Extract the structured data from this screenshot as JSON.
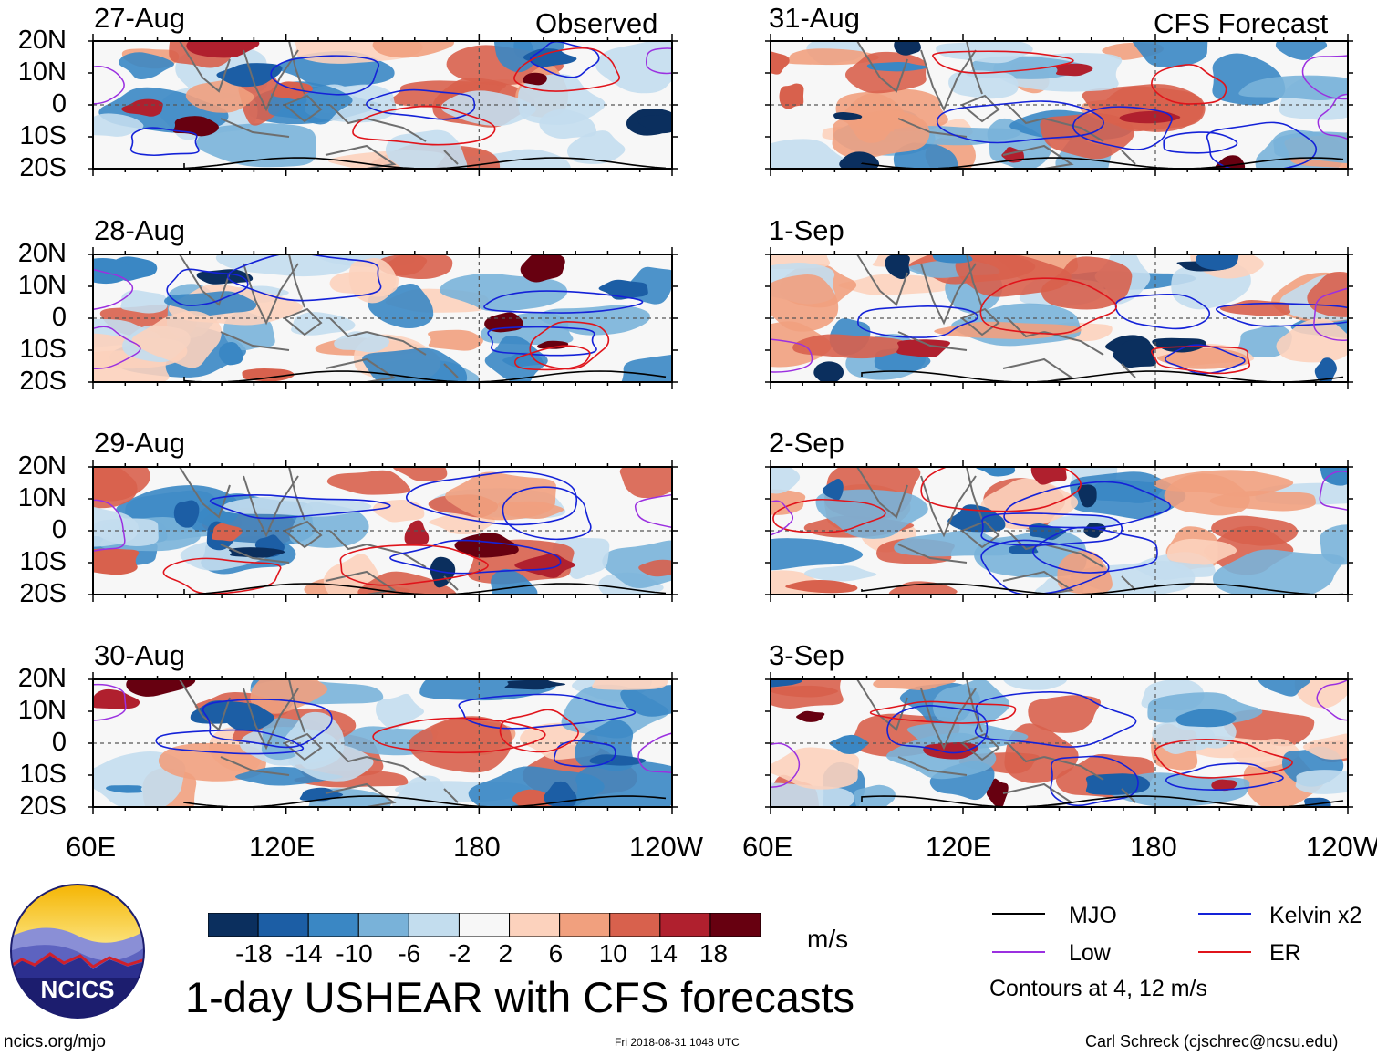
{
  "header": {
    "observed_label": "Observed",
    "forecast_label": "CFS Forecast"
  },
  "panels": {
    "observed": [
      {
        "date": "27-Aug"
      },
      {
        "date": "28-Aug"
      },
      {
        "date": "29-Aug"
      },
      {
        "date": "30-Aug"
      }
    ],
    "forecast": [
      {
        "date": "31-Aug"
      },
      {
        "date": "1-Sep"
      },
      {
        "date": "2-Sep"
      },
      {
        "date": "3-Sep"
      }
    ]
  },
  "axes": {
    "lat_labels": [
      "20N",
      "10N",
      "0",
      "10S",
      "20S"
    ],
    "lon_labels": [
      "60E",
      "120E",
      "180",
      "120W"
    ],
    "lat_range": [
      -20,
      20
    ],
    "lon_range_deg_east": [
      60,
      240
    ]
  },
  "colorbar": {
    "unit": "m/s",
    "ticks": [
      "-18",
      "-14",
      "-10",
      "-6",
      "-2",
      "2",
      "6",
      "10",
      "14",
      "18"
    ],
    "colors": [
      "#0b2f5e",
      "#1c5ea5",
      "#3a87c4",
      "#79b2d9",
      "#c3ddee",
      "#f7f7f7",
      "#fcd2bd",
      "#f1a07e",
      "#d8614d",
      "#b0202e",
      "#670010"
    ]
  },
  "legend": {
    "items": [
      {
        "label": "MJO",
        "color": "#000000"
      },
      {
        "label": "Kelvin x2",
        "color": "#1422d8"
      },
      {
        "label": "Low",
        "color": "#9b30e0"
      },
      {
        "label": "ER",
        "color": "#e0141b"
      }
    ],
    "contours_note": "Contours at 4, 12 m/s"
  },
  "footer": {
    "title": "1-day USHEAR with CFS forecasts",
    "url": "ncics.org/mjo",
    "timestamp": "Fri 2018-08-31 1048 UTC",
    "credit": "Carl Schreck (cjschrec@ncsu.edu)",
    "logo_text": "NCICS"
  }
}
